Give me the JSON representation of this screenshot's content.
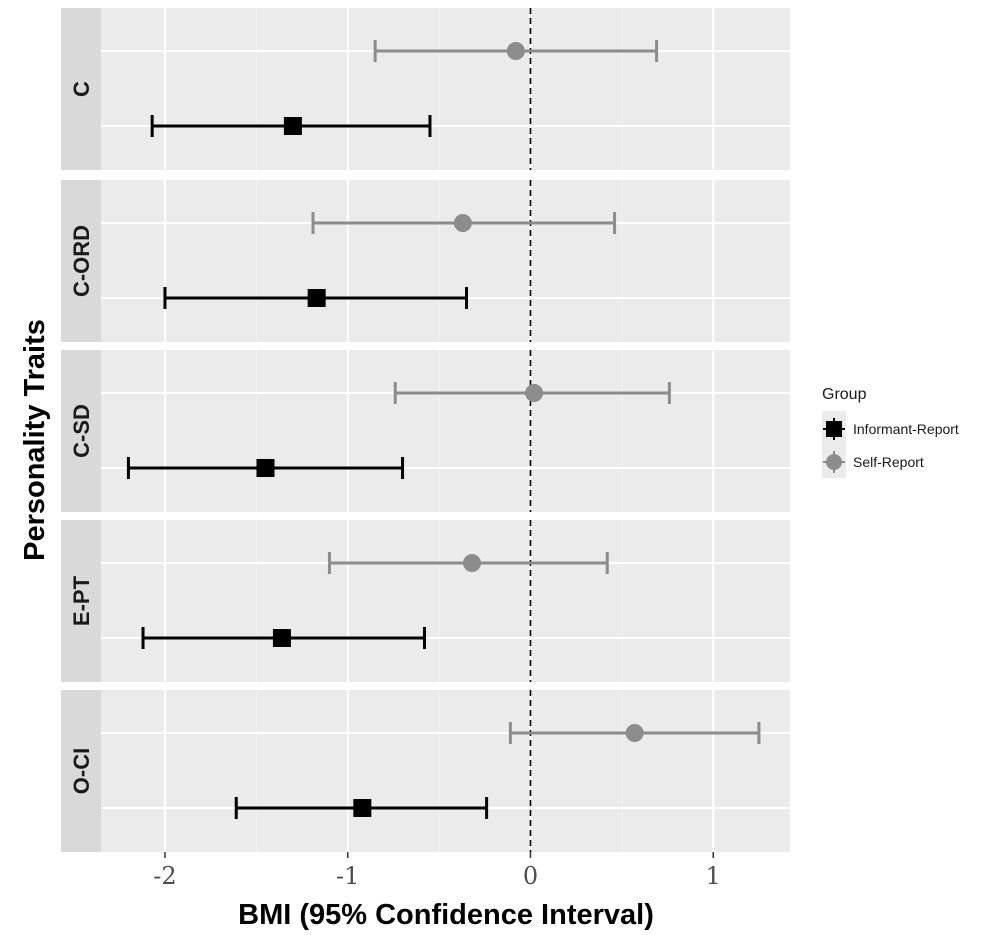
{
  "chart_data": {
    "type": "scatter",
    "subtype": "forest-plot-with-error-bars",
    "xlabel": "BMI (95% Confidence Interval)",
    "ylabel": "Personality Traits",
    "xlim": [
      -2.35,
      1.42
    ],
    "xticks": [
      -2,
      -1,
      0,
      1
    ],
    "xtick_labels": [
      "-2",
      "-1",
      "0",
      "1"
    ],
    "reference_line": {
      "x": 0,
      "style": "dashed"
    },
    "grid": true,
    "legend": {
      "title": "Group",
      "placement": "right",
      "entries": [
        {
          "label": "Informant-Report",
          "shape": "square",
          "color": "#000000"
        },
        {
          "label": "Self-Report",
          "shape": "circle",
          "color": "#8c8c8c"
        }
      ]
    },
    "panels": [
      {
        "label": "C",
        "points": [
          {
            "group": "Self-Report",
            "estimate": -0.08,
            "lower": -0.85,
            "upper": 0.69
          },
          {
            "group": "Informant-Report",
            "estimate": -1.3,
            "lower": -2.07,
            "upper": -0.55
          }
        ]
      },
      {
        "label": "C-ORD",
        "points": [
          {
            "group": "Self-Report",
            "estimate": -0.37,
            "lower": -1.19,
            "upper": 0.46
          },
          {
            "group": "Informant-Report",
            "estimate": -1.17,
            "lower": -2.0,
            "upper": -0.35
          }
        ]
      },
      {
        "label": "C-SD",
        "points": [
          {
            "group": "Self-Report",
            "estimate": 0.02,
            "lower": -0.74,
            "upper": 0.76
          },
          {
            "group": "Informant-Report",
            "estimate": -1.45,
            "lower": -2.2,
            "upper": -0.7
          }
        ]
      },
      {
        "label": "E-PT",
        "points": [
          {
            "group": "Self-Report",
            "estimate": -0.32,
            "lower": -1.1,
            "upper": 0.42
          },
          {
            "group": "Informant-Report",
            "estimate": -1.36,
            "lower": -2.12,
            "upper": -0.58
          }
        ]
      },
      {
        "label": "O-CI",
        "points": [
          {
            "group": "Self-Report",
            "estimate": 0.57,
            "lower": -0.11,
            "upper": 1.25
          },
          {
            "group": "Informant-Report",
            "estimate": -0.92,
            "lower": -1.61,
            "upper": -0.24
          }
        ]
      }
    ]
  }
}
